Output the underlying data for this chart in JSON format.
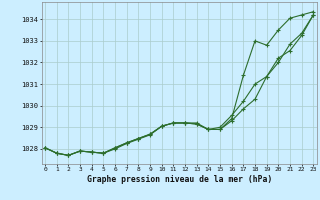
{
  "title": "Graphe pression niveau de la mer (hPa)",
  "background_color": "#cceeff",
  "grid_color": "#aacccc",
  "line_color": "#2d6e2d",
  "x_ticks": [
    0,
    1,
    2,
    3,
    4,
    5,
    6,
    7,
    8,
    9,
    10,
    11,
    12,
    13,
    14,
    15,
    16,
    17,
    18,
    19,
    20,
    21,
    22,
    23
  ],
  "y_ticks": [
    1028,
    1029,
    1030,
    1031,
    1032,
    1033,
    1034
  ],
  "ylim": [
    1027.3,
    1034.8
  ],
  "xlim": [
    -0.3,
    23.3
  ],
  "series": [
    [
      1028.05,
      1027.8,
      1027.7,
      1027.9,
      1027.85,
      1027.8,
      1028.0,
      1028.25,
      1028.45,
      1028.65,
      1029.05,
      1029.2,
      1029.2,
      1029.2,
      1028.9,
      1028.9,
      1029.3,
      1029.85,
      1030.3,
      1031.35,
      1032.2,
      1032.55,
      1033.25,
      1034.2
    ],
    [
      1028.05,
      1027.8,
      1027.7,
      1027.9,
      1027.85,
      1027.8,
      1028.05,
      1028.28,
      1028.48,
      1028.68,
      1029.05,
      1029.2,
      1029.2,
      1029.15,
      1028.9,
      1029.0,
      1029.55,
      1030.2,
      1031.0,
      1031.35,
      1032.0,
      1032.85,
      1033.35,
      1034.2
    ],
    [
      1028.05,
      1027.8,
      1027.7,
      1027.9,
      1027.85,
      1027.8,
      1028.05,
      1028.28,
      1028.48,
      1028.68,
      1029.05,
      1029.2,
      1029.2,
      1029.15,
      1028.9,
      1028.9,
      1029.4,
      1031.4,
      1033.0,
      1032.8,
      1033.5,
      1034.05,
      1034.2,
      1034.35
    ]
  ]
}
